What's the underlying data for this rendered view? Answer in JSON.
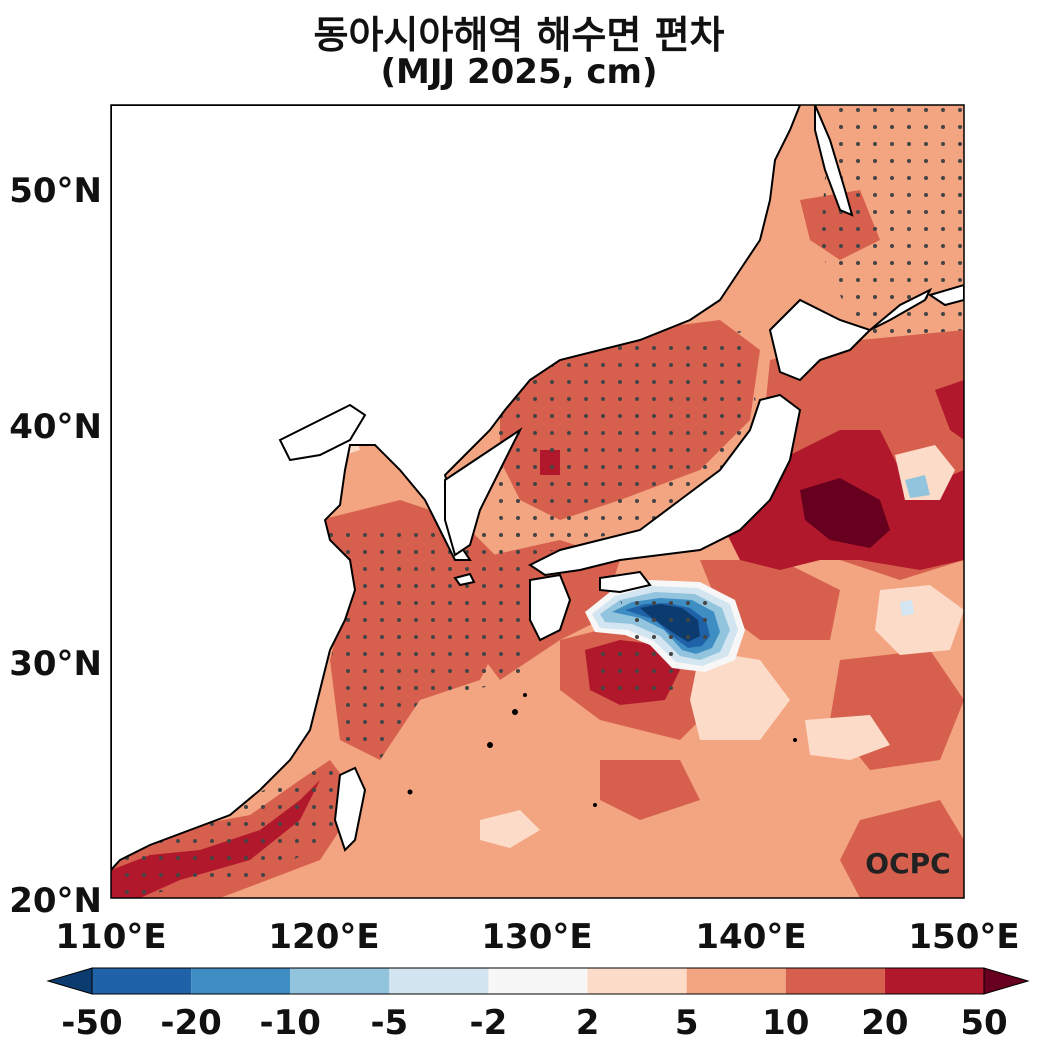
{
  "title": "동아시아해역 해수면 편차",
  "subtitle": "(MJJ 2025, cm)",
  "logo_text": "OCPC",
  "axes": {
    "lon_ticks": [
      "110°E",
      "120°E",
      "130°E",
      "140°E",
      "150°E"
    ],
    "lat_ticks": [
      "50°N",
      "40°N",
      "30°N",
      "20°N"
    ],
    "lon_range": [
      110,
      150
    ],
    "lat_range": [
      20,
      53.5
    ]
  },
  "colorbar": {
    "labels": [
      "-50",
      "-20",
      "-10",
      "-5",
      "-2",
      "2",
      "5",
      "10",
      "20",
      "50"
    ],
    "colors": [
      "#0b3b6f",
      "#1f62a8",
      "#3e8ec4",
      "#92c4de",
      "#d3e5f0",
      "#f7f7f7",
      "#fcdbc8",
      "#f3a481",
      "#d6604d",
      "#b2182b",
      "#67001f"
    ]
  },
  "colors": {
    "land": "#ffffff",
    "coast": "#000000",
    "stipple": "#444444"
  }
}
